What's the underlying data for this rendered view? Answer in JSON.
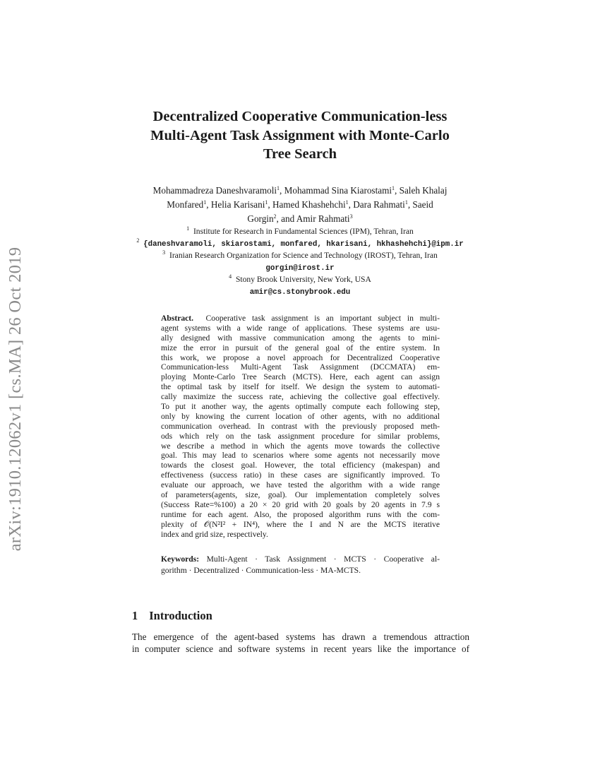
{
  "sidebar_stamp": "arXiv:1910.12062v1  [cs.MA]  26 Oct 2019",
  "title_lines": [
    "Decentralized Cooperative Communication-less",
    "Multi-Agent Task Assignment with Monte-Carlo",
    "Tree Search"
  ],
  "authors": {
    "line1": [
      "Mohammadreza Daneshvaramoli",
      "1",
      ", Mohammad Sina Kiarostami",
      "1",
      ", Saleh Khalaj"
    ],
    "line2": [
      "Monfared",
      "1",
      ", Helia Karisani",
      "1",
      ", Hamed Khashehchi",
      "1",
      ", Dara Rahmati",
      "1",
      ", Saeid"
    ],
    "line3": [
      "Gorgin",
      "2",
      ", and Amir Rahmati",
      "3"
    ]
  },
  "affiliations": [
    {
      "mark": "1",
      "text": "Institute for Research in Fundamental Sciences (IPM), Tehran, Iran"
    },
    {
      "mark": "2",
      "email": "{daneshvaramoli, skiarostami, monfared, hkarisani, hkhashehchi}@ipm.ir"
    },
    {
      "mark": "3",
      "text": "Iranian Research Organization for Science and Technology (IROST), Tehran, Iran"
    },
    {
      "email": "gorgin@irost.ir"
    },
    {
      "mark": "4",
      "text": "Stony Brook University, New York, USA"
    },
    {
      "email": "amir@cs.stonybrook.edu"
    }
  ],
  "abstract": {
    "label": "Abstract.",
    "lines": [
      "Cooperative task assignment is an important subject in multi-",
      "agent systems with a wide range of applications. These systems are usu-",
      "ally designed with massive communication among the agents to mini-",
      "mize the error in pursuit of the general goal of the entire system. In",
      "this work, we propose a novel approach for Decentralized Cooperative",
      "Communication-less Multi-Agent Task Assignment (DCCMATA) em-",
      "ploying Monte-Carlo Tree Search (MCTS). Here, each agent can assign",
      "the optimal task by itself for itself. We design the system to automati-",
      "cally maximize the success rate, achieving the collective goal effectively.",
      "To put it another way, the agents optimally compute each following step,",
      "only by knowing the current location of other agents, with no additional",
      "communication overhead. In contrast with the previously proposed meth-",
      "ods which rely on the task assignment procedure for similar problems,",
      "we describe a method in which the agents move towards the collective",
      "goal. This may lead to scenarios where some agents not necessarily move",
      "towards the closest goal. However, the total efficiency (makespan) and",
      "effectiveness (success ratio) in these cases are significantly improved. To",
      "evaluate our approach, we have tested the algorithm with a wide range",
      "of parameters(agents, size, goal). Our implementation completely solves",
      "(Success Rate=%100) a 20 × 20 grid with 20 goals by 20 agents in 7.9 s",
      "runtime for each agent. Also, the proposed algorithm runs with the com-",
      "plexity of 𝒪(N²I² + IN⁴), where the I and N are the MCTS iterative",
      "index and grid size, respectively."
    ]
  },
  "keywords": {
    "label": "Keywords:",
    "lines": [
      "Multi-Agent · Task Assignment · MCTS · Cooperative al-",
      "gorithm · Decentralized · Communication-less · MA-MCTS."
    ]
  },
  "intro": {
    "number": "1",
    "heading": "Introduction",
    "lines": [
      "The emergence of the agent-based systems has drawn a tremendous attraction",
      "in computer science and software systems in recent years like the importance of"
    ]
  }
}
